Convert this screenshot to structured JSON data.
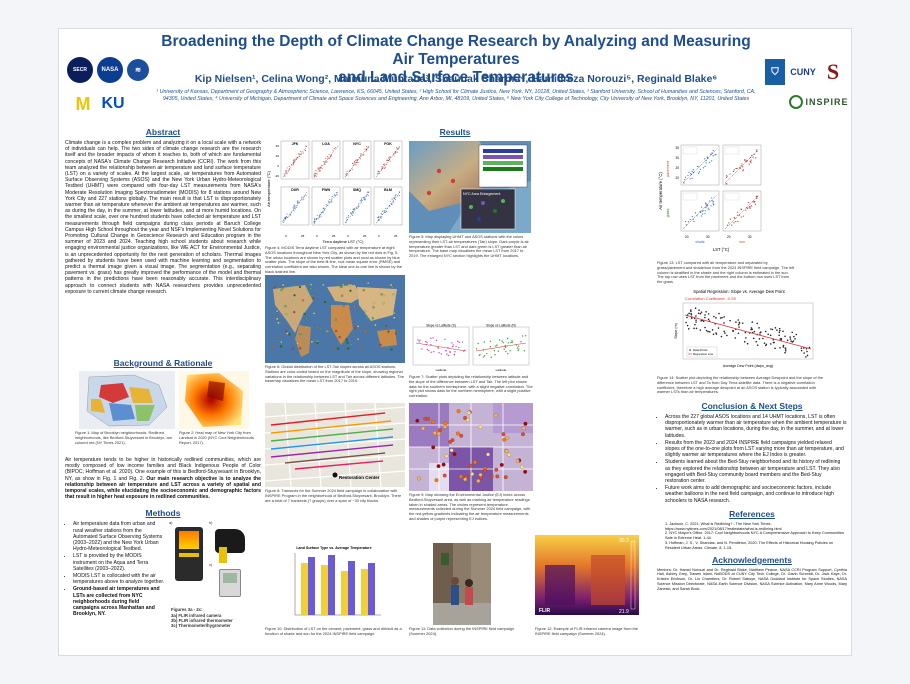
{
  "header": {
    "title_line1": "Broadening the Depth of Climate Change Research by Analyzing and Measuring Air Temperatures",
    "title_line2": "and Land Surface Temperatures",
    "authors": "Kip Nielsen¹, Celina Wong², Maimuna Muntaha³, Shaunak Sharma⁴, Hamidreza Norouzi⁵, Reginald Blake⁶",
    "affiliations": "¹ University of Kansas, Department of Geography & Atmospheric Science, Lawrence, KS, 66045, United States, ² High School for Climate Justice, New York, NY, 10128, United States, ³ Stanford University, School of Humanities and Sciences, Stanford, CA, 94305, United States, ⁴ University of Michigan, Department of Climate and Space Sciences and Engineering, Ann Arbor, MI, 48109, United States, ⁵ New York City College of Technology, City University of New York, Brooklyn, NY, 11201, United States",
    "logos": {
      "secr": "SECR",
      "nasa": "NASA",
      "m": "M",
      "ku": "KU",
      "cuny": "CUNY",
      "stanford": "S",
      "inspire": "INSPIRE"
    }
  },
  "abstract": {
    "heading": "Abstract",
    "text": "Climate change is a complex problem and analyzing it on a local scale with a network of individuals can help. The two sides of climate change research are the research itself and the broader impacts of whom it reaches to, both of which are fundamental concepts of NASA's Climate Change Research Initiative (CCRI). The work from this team analyzed the relationship between air temperature and land surface temperature (LST) on a variety of scales. At the largest scale, air temperatures from Automated Surface Observing Systems (ASOS) and the New York Urban Hydro-Meteorological Testbed (UHMT) were compared with four-day LST measurements from NASA's Moderate Resolution Imaging Spectroradiometer (MODIS) for 8 stations around New York City and 227 stations globally. The main result is that LST is disproportionately warmer than air temperature whenever the ambient air temperatures are warmer, such as during the day, in the summer, at lower latitudes, and at more humid locations. On the smallest scale, over one hundred students have collected air temperature and LST measurements through field campaigns during class periods at Baruch College Campus High School throughout the year and NSF's Implementing Novel Solutions for Promoting Cultural Change in Geoscience Research and Education program in the summer of 2023 and 2024. Teaching high school students about research while engaging environmental justice organizations, like WE ACT for Environmental Justice, is an unprecedented opportunity for the next generation of scholars. Thermal images gathered by students have been used with machine learning and segmentation to predict a thermal image given a visual image. The segmentation (e.g., separating pavement vs. grass) has greatly improved the performance of the model and thermal patterns in the predictions have been reasonably accurate. This interdisciplinary approach to connect students with NASA researchers provides unprecedented exposure to current climate change research."
  },
  "background": {
    "heading": "Background & Rationale",
    "fig1_caption": "Figure 1: Map of Brooklyn neighborhoods. Redlined neighborhoods, like Bedford-Stuyvesant in Brooklyn, are colored red (NY Times 2021).",
    "fig2_caption": "Figure 2: Heat map of New York City from Landsat in 2020 (NYC Cool Neighborhoods Report, 2017).",
    "text_plain": "Air temperature tends to be higher in historically redlined communities, which are mostly composed of low income families and Black Indigenous People of Color (BIPOC; Hoffman et al. 2020). One example of this is Bedford-Stuyvesant in Brooklyn, NY, as show in Fig. 1 and Fig. 2.",
    "text_bold": "Our main research objective is to analyze the relationship between air temperature and LST across a variety of spatial and temporal scales, while elucidating the socioeconomic and demographic factors that result in higher heat exposure in redlined communities."
  },
  "methods": {
    "heading": "Methods",
    "b1": "Air temperature data from urban and rural weather stations from the Automated Surface Observing Systems (2003–2022) and the New York Urban Hydro-Meteorological Testbed.",
    "b2": "LST is provided by the MODIS instrument on the Aqua and Terra Satellites (2003–2022).",
    "b3": "MODIS LST is collocated with the air temperatures above to analyze together.",
    "b4": "Ground-based air temperatures and LSTs are collected from NYC neighborhoods during field campaigns across Manhattan and Brooklyn, NY.",
    "fig3_label_a": "a)",
    "fig3_label_b": "b)",
    "fig3_label_c": "c)",
    "fig3_caption_title": "Figures 3a - 3c:",
    "fig3_a": "3a) FLIR infrared camera",
    "fig3_b": "3b) FLIR infrared thermometer",
    "fig3_c": "3c) Thermometer/hygrometer"
  },
  "results": {
    "heading": "Results",
    "fig4": {
      "stations": [
        "JFK",
        "LGA",
        "NYC",
        "FOK",
        "DXR",
        "FWN",
        "SMQ",
        "BLM"
      ],
      "ylabel": "Air temperature (°C)",
      "xlabel": "Terra daytime LST (°C)",
      "yticks": [
        "40",
        "20",
        "0",
        "-20"
      ],
      "xticks": [
        "0",
        "25"
      ],
      "caption": "Figure 4: MODIS Terra daytime LST compared with air temperature at eight ASOS locations throughout New York City, as shown by the red dots in Fig. 5. The urban locations are shown by red scatter plots and rural as shown by blue scatter plots. The slope of the best fit line, root mean square error (RMSE) and correlation coefficient are also shown. The ideal one-to-one line is shown by the black dashed line."
    },
    "fig5_caption": "Figure 5: Map displaying UHMT and ASOS stations with the colors representing their LST-air temperatures (Tair) slope. Dark purple is air temperature greater than LST and dark green is LST greater than air temperature. The base map visualizes the mean LST from 2017 to 2019. The enlarged NYC section highlights the UHMT locations.",
    "fig5_inset_title": "NYC Area Enlargement",
    "fig6_caption": "Figure 6: Global distribution of the LST-Tair slopes across all ASOS stations. Stations are color-coded based on the magnitude of the slope, showing regional variations in the relationship between LST and Tair across different latitudes. The basemap visualizes the mean LST from 2017 to 2019.",
    "fig7_caption": "Figure 7: Scatter plots depicting the relationship between latitude and the slope of the difference between LST and Tair. The left plot shows data for the southern hemisphere, with a slight negative correlation. The right plot shows data for the northern hemisphere, with a slight positive correlation.",
    "fig7_left_title": "Slope vs Latitude (S)",
    "fig7_right_title": "Slope vs Latitude (N)",
    "fig7_xlabel": "Latitude",
    "fig8_caption": "Figure 8: Transects for the Summer 2024 field campaign in collaboration with INSPIRE Program in the neighborhood of Bedford-Stuyvesant, Brooklyn. There are a total of 7 transects (7 groups) over a span of ~30 city blocks.",
    "fig8_label": "Restoration Center",
    "fig9_caption": "Figure 9: Map showing the Environmental Justice (EJ) index across Bedford-Stuyvesant area, as well as marking air temperature readings taken in shaded areas. The circles represent temperature measurements collected during the Summer 2024 field campaign, with the red-yellow gradients indicating the air temperature measurements and shades of purple representing EJ indices.",
    "fig10_title": "Land Surface Type vs. Average Temperature",
    "fig10_caption": "Figure 10: Distribution of LST on the cement, pavement, grass and dirt/soil as a function of shade and sun for the 2024 INSPIRE field campaign.",
    "fig11_caption": "Figure 11: Data collection during the INSPIRE field campaign (Summer 2024).",
    "fig12_caption": "Figure 12: Example of FLIR infrared camera image from the INSPIRE field campaign (Summer 2024).",
    "fig12_top": "30.3",
    "fig12_bottom": "21.9",
    "fig12_brand": "FLIR",
    "fig13": {
      "ylabel": "Air temperature (°C)",
      "xlabel": "LST (°C)",
      "yticks": [
        "35",
        "30",
        "25",
        "20"
      ],
      "xticks": [
        "20",
        "30",
        "20",
        "30"
      ],
      "label_shade": "shade",
      "label_sun": "sun",
      "label_grass": "grass",
      "label_pavement": "pavement",
      "caption": "Figure 13: LST compared with air temperature and separated by grass/pavement and shade/sun from the 2024 INSPIRE field campaign. The left column is stratified in the shade and the right column is estimated in the sun. The top row uses LST from the pavement and the bottom row uses LST from the grass."
    },
    "fig14": {
      "title": "Spatial Regression: Slope vs. Average Dew Point",
      "corr": "Correlation Coefficient: -0.59",
      "xlabel": "Average Dew Point (dwpc_avg)",
      "ylabel": "Slope (m)",
      "legend_points": "Data Points",
      "legend_line": "Regression Line",
      "caption": "Figure 14: Scatter plot depicting the relationship between Average Dewpoint and the slope of the difference between LST and Ta from Day Terra satellite data. There is a negative correlation coefficient, therefore a high average dewpoint at an ASOS station is typically associated with warmer LSTs than air temperatures."
    }
  },
  "conclusion": {
    "heading": "Conclusion & Next Steps",
    "b1": "Across the 227 global ASOS locations and 14 UHMT locations, LST is often disproportionately warmer than air temperature when the ambient temperature is warmer, such as in urban locations, during the day, in the summer, and at lower latitudes.",
    "b2": "Results from the 2023 and 2024 INSPIRE field campaigns yielded relaxed slopes of the one-to-one plots from LST varying more than air temperature, and slightly warmer air temperatures where the EJ Index is greater.",
    "b3": "Students learned about the Bed-Stuy neighborhood and its history of redlining as they explored the relationship between air temperature and LST. They also engaged with Bed-Stuy community board members and the Bed-Stuy restoration center.",
    "b4": "Future work aims to add demographic and socioeconomic factors, include weather balloons in the next field campaign, and continue to introduce high schoolers to NASA research."
  },
  "references": {
    "heading": "References",
    "r1": "1. Jackson, C. 2021: What is Redlining? - The New York Times, https://www.nytimes.com/2021/08/17/realestate/what-is-redlining.html",
    "r2": "2. NYC Mayor's Office, 2017: Cool Neighborhoods NYC A Comprehensive Approach to Keep Communities Safe in Extreme Heat. 1-44.",
    "r3": "3. Hoffman, J. S., V. Shandas, and N. Pendleton, 2020: The Effects of Historical Housing Policies on Resident Urban Areas. Climate, 8, 1-15."
  },
  "acknowledgements": {
    "heading": "Acknowledgements",
    "text": "Mentors: Dr. Hamid Norouzi and Dr. Reginald Blake, Matthew Pearce, NASA CCRI Program Support, Cynthia Hall, Ashley Grey, Tiawen Islam, NoBODS at CUNY City Tech College, Dr. Gavin Schmidt, Dr. Jack Kaye, Dr. Kristen Erickson, Dr. Lin Chambers, Dr. Robert Saboye, NASA Goddard Institute for Space Studies, NASA Science Mission Directorate, NASA Earth Science Division, NASA Science Activation, Mary Anne Woods, Mary Zaneski, and Sarah Bock."
  }
}
